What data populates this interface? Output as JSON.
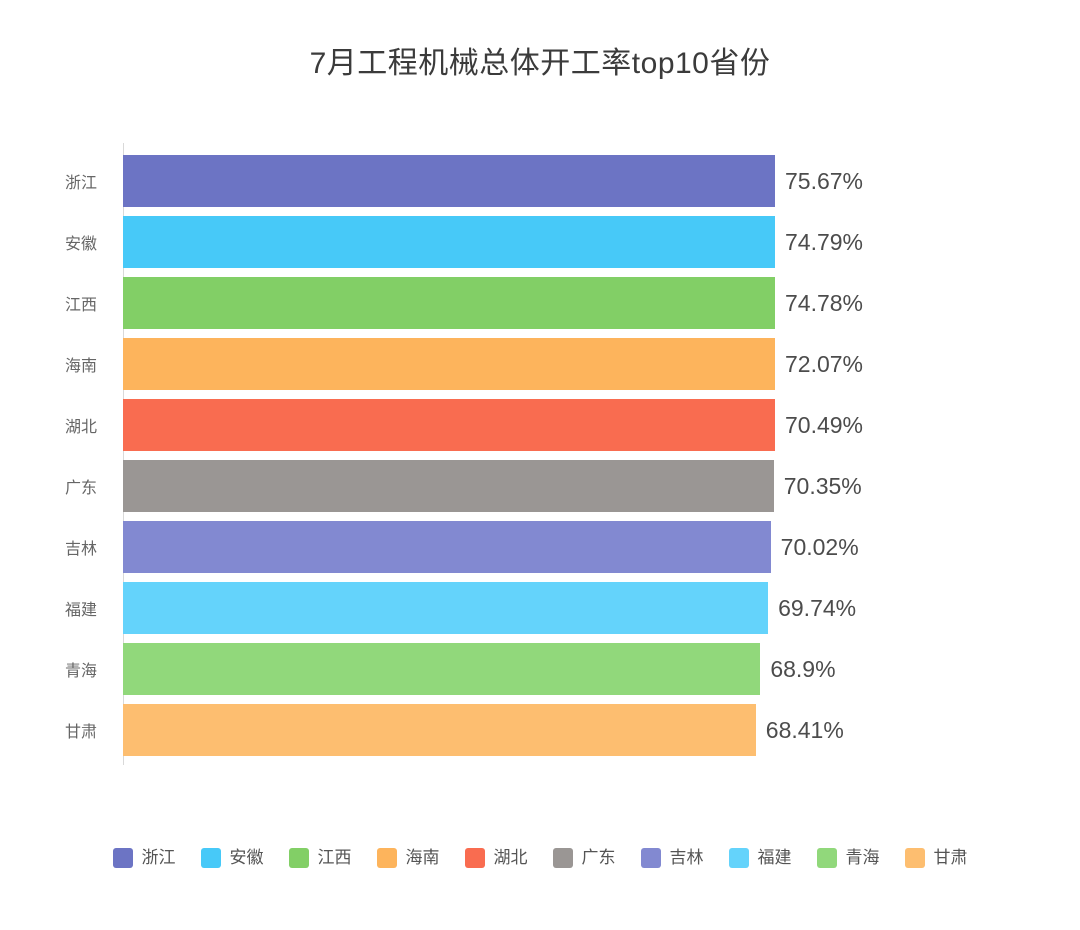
{
  "chart_data": {
    "type": "bar",
    "orientation": "horizontal",
    "title": "7月工程机械总体开工率top10省份",
    "categories": [
      "浙江",
      "安徽",
      "江西",
      "海南",
      "湖北",
      "广东",
      "吉林",
      "福建",
      "青海",
      "甘肃"
    ],
    "values": [
      75.67,
      74.79,
      74.78,
      72.07,
      70.49,
      70.35,
      70.02,
      69.74,
      68.9,
      68.41
    ],
    "value_labels": [
      "75.67%",
      "74.79%",
      "74.78%",
      "72.07%",
      "70.49%",
      "70.35%",
      "70.02%",
      "69.74%",
      "68.9%",
      "68.41%"
    ],
    "bar_colors": [
      "#6C74C4",
      "#47C9F8",
      "#82CF66",
      "#FDB45C",
      "#F96C50",
      "#9A9694",
      "#8289D1",
      "#64D3FB",
      "#91D87B",
      "#FDBE70"
    ],
    "xlabel": "",
    "ylabel": "",
    "xlim": [
      0,
      80
    ],
    "grid": false,
    "legend_position": "bottom",
    "legend": [
      "浙江",
      "安徽",
      "江西",
      "海南",
      "湖北",
      "广东",
      "吉林",
      "福建",
      "青海",
      "甘肃"
    ],
    "axis_line_color": "#d9d9d9",
    "title_color": "#3b3b3b",
    "label_color": "#666666",
    "value_label_color": "#4c4c4c",
    "background_color": "#ffffff"
  }
}
